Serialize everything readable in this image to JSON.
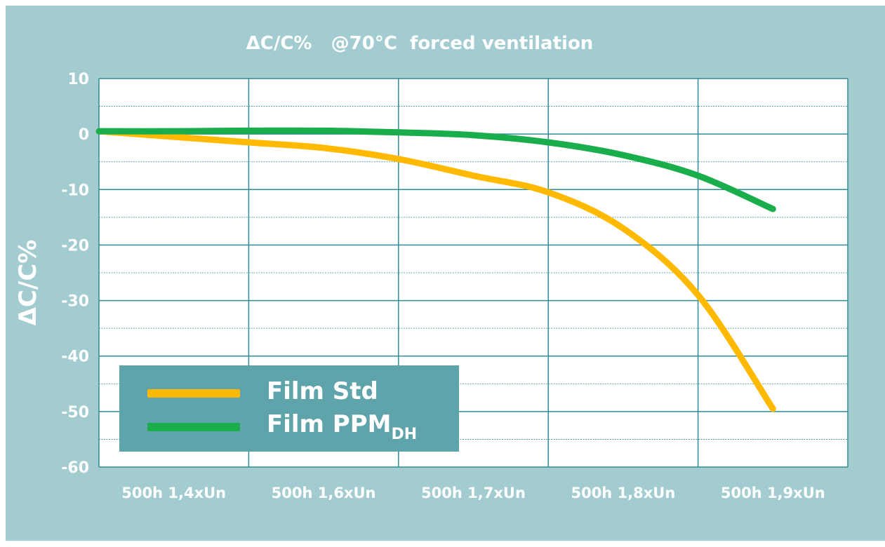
{
  "colors": {
    "background": "#a2ccd0",
    "plot_area": "#ffffff",
    "grid": "#2f8c96",
    "text": "#ffffff",
    "legend_box": "#5fa3ab"
  },
  "chart_data": {
    "type": "line",
    "title": "ΔC/C%   @70°C  forced ventilation",
    "xlabel": "",
    "ylabel": "ΔC/C%",
    "categories": [
      "500h 1,4xUn",
      "500h 1,6xUn",
      "500h 1,7xUn",
      "500h 1,8xUn",
      "500h 1,9xUn"
    ],
    "ylim": [
      -60,
      10
    ],
    "yticks": [
      10,
      0,
      -10,
      -20,
      -30,
      -40,
      -50,
      -60
    ],
    "grid": true,
    "legend_position": "bottom-left",
    "series": [
      {
        "name": "Film Std",
        "legend_main": "Film Std",
        "legend_sub": "",
        "color": "#ffb900",
        "x": [
          0.0,
          0.5,
          1.0,
          1.5,
          2.0,
          2.5,
          3.0,
          3.5,
          4.0,
          4.5
        ],
        "values": [
          0.5,
          -0.5,
          -1.5,
          -2.5,
          -4.5,
          -7.5,
          -10.5,
          -17.0,
          -29.0,
          -49.5
        ]
      },
      {
        "name": "Film PPM DH",
        "legend_main": "Film PPM",
        "legend_sub": "DH",
        "color": "#1aad4b",
        "x": [
          0.0,
          0.5,
          1.0,
          1.5,
          2.0,
          2.5,
          3.0,
          3.5,
          4.0,
          4.5
        ],
        "values": [
          0.5,
          0.5,
          0.6,
          0.6,
          0.3,
          -0.2,
          -1.5,
          -3.8,
          -7.5,
          -13.5
        ]
      }
    ]
  }
}
